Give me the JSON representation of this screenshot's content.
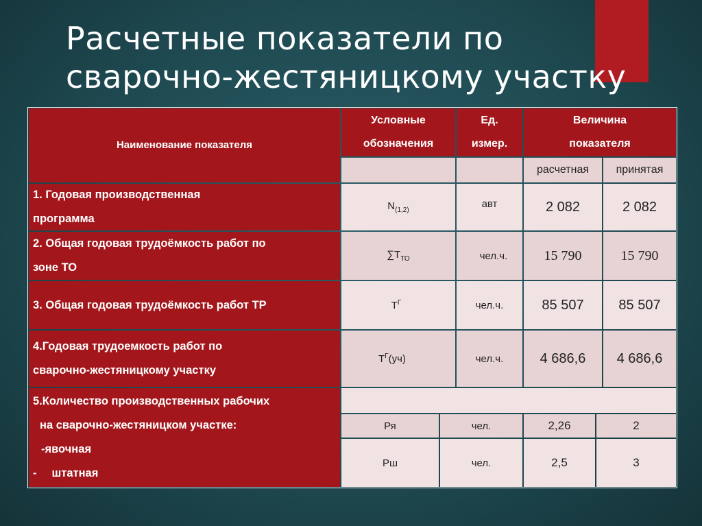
{
  "slide": {
    "title_line1": "Расчетные показатели по",
    "title_line2": "сварочно-жестяницкому участку",
    "accent_color": "#b01c22",
    "table_header_color": "#a3171c"
  },
  "table": {
    "headers": {
      "name": "Наименование показателя",
      "symbol_l1": "Условные",
      "symbol_l2": "обозначения",
      "unit_l1": "Ед.",
      "unit_l2": "измер.",
      "value_l1": "Величина",
      "value_l2": "показателя",
      "calculated": "расчетная",
      "accepted": "принятая"
    },
    "rows": [
      {
        "label_l1": "1. Годовая производственная",
        "label_l2": "программа",
        "symbol": "N",
        "symbol_sub": "(1,2)",
        "unit": "авт",
        "calculated": "2 082",
        "accepted": "2 082"
      },
      {
        "label_l1": "2. Общая годовая трудоёмкость работ по",
        "label_l2": "зоне ТО",
        "symbol": "∑T",
        "symbol_sub": "ТО",
        "unit": "чел.ч.",
        "calculated": "15 790",
        "accepted": "15 790"
      },
      {
        "label_l1": "3. Общая годовая трудоёмкость работ ТР",
        "symbol": "T",
        "symbol_sup": "Г",
        "unit": "чел.ч.",
        "calculated": "85 507",
        "accepted": "85 507"
      },
      {
        "label_l1": "4.Годовая трудоемкость работ по",
        "label_l2": "сварочно-жестяницкому участку",
        "symbol": "T",
        "symbol_sup": "Г",
        "symbol_suffix": "(уч)",
        "unit": "чел.ч.",
        "calculated": "4 686,6",
        "accepted": "4 686,6"
      },
      {
        "label_l1": "5.Количество производственных рабочих",
        "label_l2": "на сварочно-жестяницком  участке:",
        "label_l3": "-явочная",
        "label_l4_dash": "-",
        "label_l4": "штатная",
        "sub_rows": [
          {
            "symbol": "Ря",
            "unit": "чел.",
            "calculated": "2,26",
            "accepted": "2"
          },
          {
            "symbol": "Рш",
            "unit": "чел.",
            "calculated": "2,5",
            "accepted": "3"
          }
        ]
      }
    ]
  }
}
